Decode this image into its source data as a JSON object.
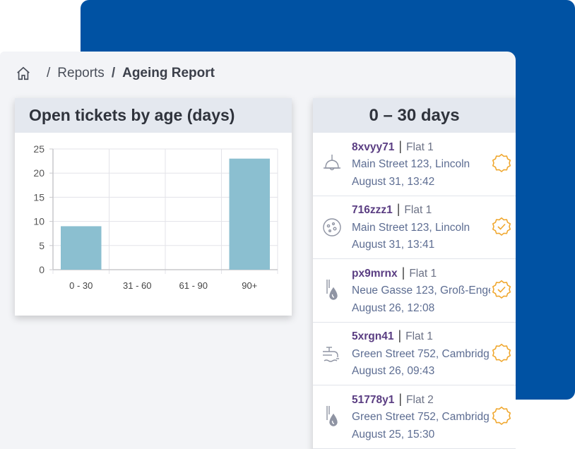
{
  "breadcrumb": {
    "home_icon": "home-icon",
    "separator": "/",
    "reports": "Reports",
    "current": "Ageing Report"
  },
  "chart_card": {
    "title": "Open tickets by age (days)"
  },
  "chart_data": {
    "type": "bar",
    "categories": [
      "0 - 30",
      "31 - 60",
      "61 - 90",
      "90+"
    ],
    "values": [
      9,
      0,
      0,
      23
    ],
    "ylim": [
      0,
      25
    ],
    "yticks": [
      0,
      5,
      10,
      15,
      20,
      25
    ],
    "grid": true,
    "bar_color": "#8bbfd0"
  },
  "tickets_card": {
    "title": "0 – 30 days",
    "tickets": [
      {
        "code": "8xvyy71",
        "flat": "Flat 1",
        "address": "Main Street 123, Lincoln",
        "date": "August 31, 13:42",
        "icon": "ceiling-lamp-icon",
        "status": "pending-badge-icon"
      },
      {
        "code": "716zzz1",
        "flat": "Flat 1",
        "address": "Main Street 123, Lincoln",
        "date": "August 31, 13:41",
        "icon": "mould-spots-icon",
        "status": "checked-badge-icon"
      },
      {
        "code": "px9mrnx",
        "flat": "Flat 1",
        "address": "Neue Gasse 123, Groß-Enge",
        "date": "August 26, 12:08",
        "icon": "water-leak-icon",
        "status": "checked-badge-icon"
      },
      {
        "code": "5xrgn41",
        "flat": "Flat 1",
        "address": "Green Street 752, Cambridg",
        "date": "August 26, 09:43",
        "icon": "faucet-icon",
        "status": "pending-badge-icon"
      },
      {
        "code": "51778y1",
        "flat": "Flat 2",
        "address": "Green Street 752, Cambridg",
        "date": "August 25, 15:30",
        "icon": "water-leak-icon",
        "status": "pending-badge-icon"
      }
    ]
  },
  "colors": {
    "brand_blue": "#0052a3",
    "ticket_code": "#5a3d82",
    "status_orange": "#f0a830"
  }
}
